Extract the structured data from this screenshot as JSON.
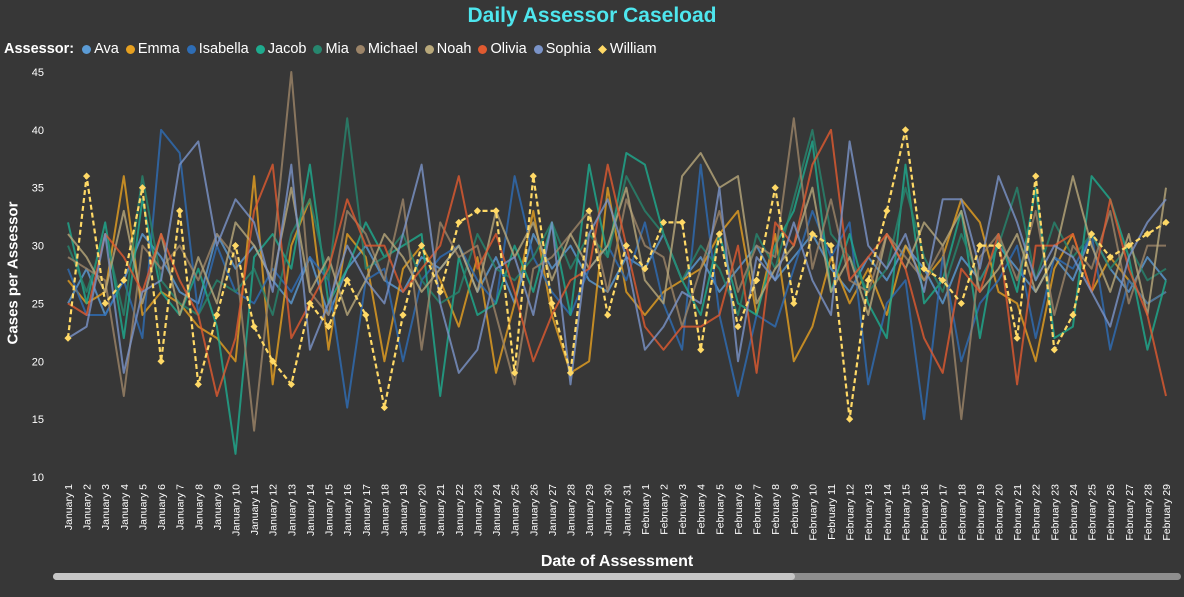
{
  "chart_data": {
    "type": "line",
    "title": "Daily Assessor Caseload",
    "xlabel": "Date of Assessment",
    "ylabel": "Cases per Assessor",
    "legend_title": "Assessor:",
    "legend_position": "top-left",
    "ylim": [
      10,
      45
    ],
    "yticks": [
      10,
      15,
      20,
      25,
      30,
      35,
      40,
      45
    ],
    "grid": false,
    "categories": [
      "January 1",
      "January 2",
      "January 3",
      "January 4",
      "January 5",
      "January 6",
      "January 7",
      "January 8",
      "January 9",
      "January 10",
      "January 11",
      "January 12",
      "January 13",
      "January 14",
      "January 15",
      "January 16",
      "January 17",
      "January 18",
      "January 19",
      "January 20",
      "January 21",
      "January 22",
      "January 23",
      "January 24",
      "January 25",
      "January 26",
      "January 27",
      "January 28",
      "January 29",
      "January 30",
      "January 31",
      "February 1",
      "February 2",
      "February 3",
      "February 4",
      "February 5",
      "February 6",
      "February 7",
      "February 8",
      "February 9",
      "February 10",
      "February 11",
      "February 12",
      "February 13",
      "February 14",
      "February 15",
      "February 16",
      "February 17",
      "February 18",
      "February 19",
      "February 20",
      "February 21",
      "February 22",
      "February 23",
      "February 24",
      "February 25",
      "February 26",
      "February 27",
      "February 28",
      "February 29"
    ],
    "series": [
      {
        "name": "Ava",
        "color": "#5b9bd5",
        "values": [
          25,
          28,
          24,
          27,
          31,
          29,
          26,
          25,
          31,
          28,
          30,
          27,
          25,
          29,
          24,
          28,
          30,
          27,
          26,
          29,
          28,
          30,
          26,
          29,
          25,
          31,
          28,
          30,
          27,
          26,
          29,
          28,
          31,
          27,
          29,
          26,
          28,
          30,
          27,
          29,
          31,
          28,
          26,
          29,
          27,
          30,
          28,
          25,
          29,
          27,
          30,
          28,
          26,
          29,
          27,
          31,
          28,
          26,
          29,
          27
        ]
      },
      {
        "name": "Emma",
        "color": "#e6a020",
        "values": [
          27,
          25,
          26,
          36,
          24,
          26,
          25,
          23,
          22,
          20,
          36,
          18,
          30,
          34,
          21,
          31,
          29,
          20,
          28,
          30,
          27,
          23,
          29,
          19,
          25,
          33,
          24,
          19,
          20,
          35,
          26,
          24,
          26,
          27,
          28,
          31,
          33,
          24,
          31,
          20,
          23,
          29,
          25,
          28,
          24,
          30,
          27,
          29,
          34,
          32,
          26,
          25,
          20,
          28,
          31,
          26,
          29,
          27,
          25,
          26
        ]
      },
      {
        "name": "Isabella",
        "color": "#2e6db5",
        "values": [
          28,
          24,
          24,
          27,
          22,
          40,
          38,
          24,
          30,
          26,
          25,
          28,
          26,
          29,
          27,
          16,
          27,
          28,
          20,
          27,
          29,
          30,
          27,
          25,
          36,
          29,
          26,
          24,
          28,
          30,
          27,
          32,
          25,
          21,
          37,
          24,
          17,
          24,
          23,
          28,
          33,
          29,
          32,
          18,
          25,
          27,
          15,
          29,
          20,
          25,
          27,
          30,
          22,
          29,
          28,
          31,
          21,
          27,
          25,
          26
        ]
      },
      {
        "name": "Jacob",
        "color": "#1eab8e",
        "values": [
          32,
          25,
          32,
          22,
          34,
          26,
          24,
          28,
          23,
          12,
          29,
          31,
          28,
          37,
          25,
          28,
          32,
          29,
          30,
          31,
          17,
          29,
          24,
          25,
          30,
          26,
          32,
          24,
          37,
          29,
          38,
          37,
          31,
          27,
          24,
          31,
          25,
          24,
          30,
          33,
          39,
          26,
          31,
          25,
          22,
          37,
          25,
          27,
          33,
          22,
          31,
          26,
          35,
          22,
          23,
          36,
          34,
          29,
          21,
          27
        ]
      },
      {
        "name": "Mia",
        "color": "#27866e",
        "values": [
          30,
          26,
          31,
          24,
          36,
          27,
          25,
          24,
          27,
          26,
          28,
          24,
          31,
          34,
          27,
          41,
          28,
          29,
          31,
          27,
          25,
          26,
          31,
          28,
          27,
          29,
          32,
          28,
          31,
          29,
          36,
          33,
          31,
          27,
          30,
          28,
          24,
          31,
          28,
          34,
          40,
          31,
          29,
          26,
          28,
          35,
          29,
          26,
          31,
          27,
          30,
          35,
          27,
          32,
          29,
          31,
          28,
          30,
          27,
          28
        ]
      },
      {
        "name": "Michael",
        "color": "#9c8468",
        "values": [
          29,
          28,
          27,
          17,
          30,
          28,
          30,
          27,
          31,
          29,
          14,
          29,
          45,
          26,
          24,
          33,
          31,
          27,
          34,
          21,
          32,
          29,
          30,
          24,
          18,
          28,
          29,
          31,
          33,
          26,
          34,
          30,
          29,
          23,
          28,
          33,
          26,
          30,
          29,
          41,
          28,
          34,
          27,
          26,
          31,
          29,
          27,
          30,
          15,
          29,
          31,
          27,
          33,
          24,
          30,
          28,
          33,
          25,
          30,
          30
        ]
      },
      {
        "name": "Noah",
        "color": "#b8a87a",
        "values": [
          31,
          29,
          26,
          33,
          25,
          31,
          24,
          29,
          25,
          32,
          30,
          27,
          35,
          26,
          29,
          24,
          27,
          31,
          29,
          26,
          28,
          30,
          26,
          33,
          29,
          32,
          27,
          31,
          28,
          30,
          35,
          27,
          25,
          36,
          38,
          35,
          36,
          25,
          28,
          30,
          35,
          26,
          29,
          24,
          31,
          28,
          32,
          30,
          33,
          26,
          28,
          31,
          26,
          29,
          36,
          30,
          26,
          31,
          24,
          35
        ]
      },
      {
        "name": "Olivia",
        "color": "#e05a30",
        "values": [
          25,
          24,
          31,
          29,
          26,
          31,
          27,
          24,
          17,
          22,
          33,
          37,
          22,
          25,
          28,
          34,
          30,
          30,
          26,
          28,
          30,
          36,
          28,
          31,
          26,
          20,
          24,
          27,
          28,
          37,
          30,
          23,
          21,
          23,
          23,
          24,
          30,
          19,
          32,
          30,
          37,
          40,
          27,
          29,
          31,
          28,
          22,
          19,
          28,
          26,
          31,
          18,
          30,
          30,
          31,
          26,
          34,
          28,
          24,
          17
        ]
      },
      {
        "name": "Sophia",
        "color": "#7a93c8",
        "values": [
          22,
          23,
          31,
          19,
          26,
          27,
          37,
          39,
          30,
          34,
          32,
          26,
          37,
          21,
          25,
          30,
          27,
          25,
          31,
          37,
          25,
          19,
          21,
          28,
          29,
          24,
          32,
          18,
          31,
          34,
          29,
          21,
          23,
          26,
          25,
          35,
          20,
          29,
          27,
          32,
          27,
          24,
          39,
          30,
          28,
          31,
          26,
          34,
          34,
          28,
          36,
          32,
          27,
          30,
          29,
          26,
          23,
          29,
          32,
          34
        ]
      },
      {
        "name": "William",
        "color": "#ffd966",
        "values": [
          22,
          36,
          25,
          27,
          35,
          20,
          33,
          18,
          24,
          30,
          23,
          20,
          18,
          25,
          23,
          27,
          24,
          16,
          24,
          30,
          26,
          32,
          33,
          33,
          19,
          36,
          25,
          19,
          33,
          24,
          30,
          28,
          32,
          32,
          21,
          31,
          23,
          27,
          35,
          25,
          31,
          30,
          15,
          27,
          33,
          40,
          28,
          27,
          25,
          30,
          30,
          22,
          36,
          21,
          24,
          31,
          29,
          30,
          31,
          32
        ]
      }
    ]
  }
}
